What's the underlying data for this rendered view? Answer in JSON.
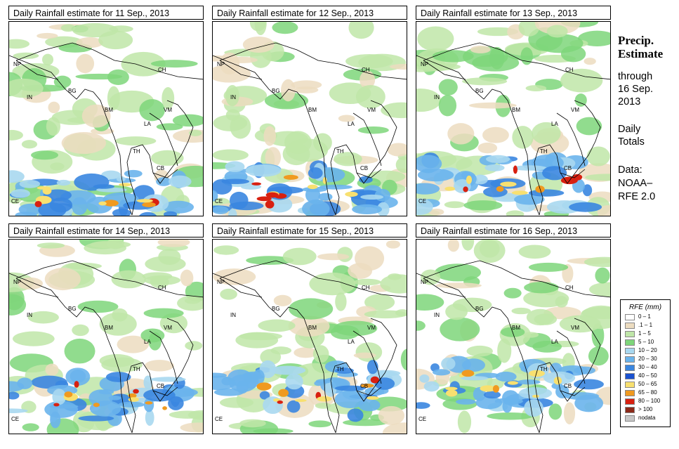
{
  "panels": [
    {
      "title": "Daily Rainfall estimate for  11 Sep., 2013"
    },
    {
      "title": "Daily Rainfall estimate for  12 Sep., 2013"
    },
    {
      "title": "Daily Rainfall estimate for  13 Sep., 2013"
    },
    {
      "title": "Daily Rainfall estimate for  14 Sep., 2013"
    },
    {
      "title": "Daily Rainfall estimate for  15 Sep., 2013"
    },
    {
      "title": "Daily Rainfall estimate for  16 Sep., 2013"
    }
  ],
  "country_labels": {
    "np": "NP",
    "ch": "CH",
    "in": "IN",
    "bg": "BG",
    "bm": "BM",
    "vm": "VM",
    "la": "LA",
    "th": "TH",
    "cb": "CB",
    "ce": "CE"
  },
  "side_panel": {
    "title_line1": "Precip.",
    "title_line2": "Estimate",
    "through": "through",
    "date_line1": "16 Sep.",
    "date_line2": "2013",
    "totals_line1": "Daily",
    "totals_line2": "Totals",
    "data_line1": "Data:",
    "data_line2": "NOAA–",
    "data_line3": "RFE 2.0"
  },
  "legend": {
    "title": "RFE (mm)",
    "entries": [
      {
        "label": "0 – 1",
        "color": "#ffffff"
      },
      {
        "label": ".1 – 1",
        "color": "#ecdcc0"
      },
      {
        "label": "1 – 5",
        "color": "#bfe6a8"
      },
      {
        "label": "5 – 10",
        "color": "#7ed67a"
      },
      {
        "label": "10 – 20",
        "color": "#a8d8f0"
      },
      {
        "label": "20 – 30",
        "color": "#6ab4ec"
      },
      {
        "label": "30 – 40",
        "color": "#3a86e0"
      },
      {
        "label": "40 – 50",
        "color": "#1a52d0"
      },
      {
        "label": "50 – 65",
        "color": "#f8e070"
      },
      {
        "label": "65 – 80",
        "color": "#f09a20"
      },
      {
        "label": "80 – 100",
        "color": "#d82010"
      },
      {
        "label": "> 100",
        "color": "#8c2a1a"
      },
      {
        "label": "nodata",
        "color": "#c8c8c8"
      }
    ]
  }
}
